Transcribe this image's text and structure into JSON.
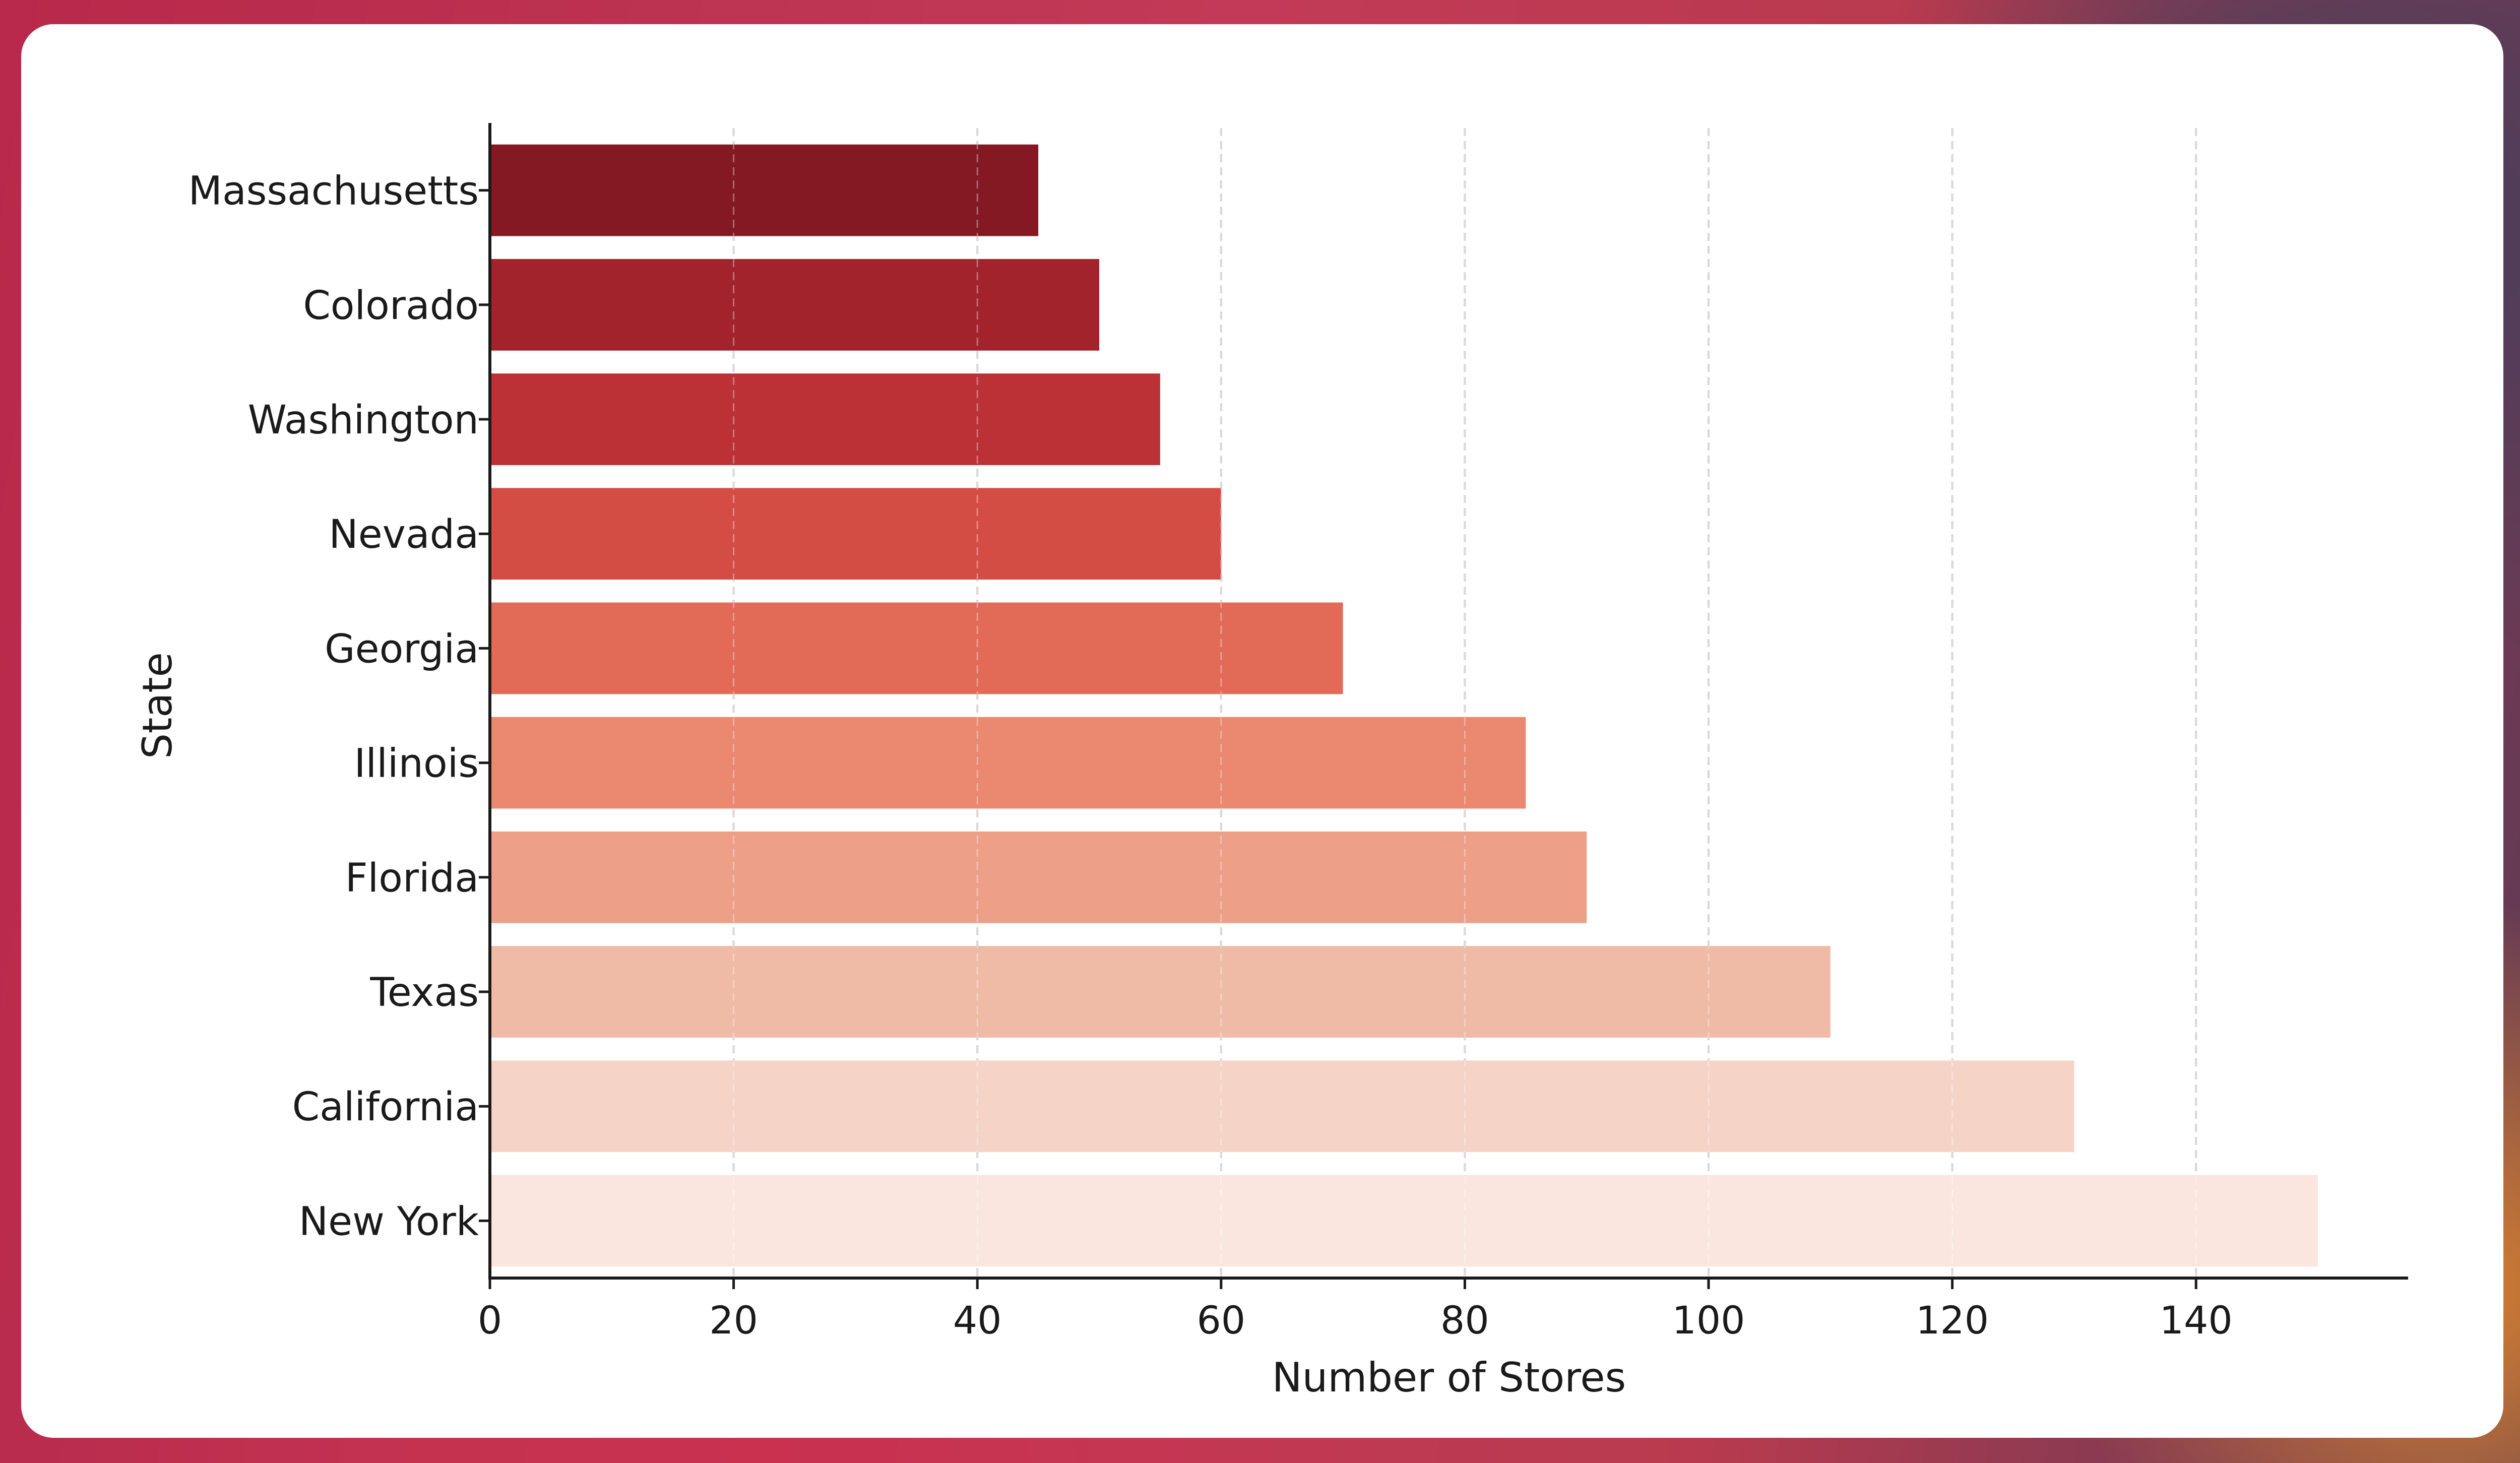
{
  "chart_data": {
    "type": "bar",
    "orientation": "horizontal",
    "categories": [
      "Massachusetts",
      "Colorado",
      "Washington",
      "Nevada",
      "Georgia",
      "Illinois",
      "Florida",
      "Texas",
      "California",
      "New York"
    ],
    "values": [
      45,
      50,
      55,
      60,
      70,
      85,
      90,
      110,
      130,
      150
    ],
    "colors": [
      "#841924",
      "#a3232c",
      "#bb3135",
      "#d44d44",
      "#e26b58",
      "#ea8870",
      "#ee9f87",
      "#efbba6",
      "#f6d3c7",
      "#fae6df"
    ],
    "xlabel": "Number of Stores",
    "ylabel": "State",
    "xlim": [
      0,
      158
    ],
    "xticks": [
      0,
      20,
      40,
      60,
      80,
      100,
      120,
      140
    ],
    "grid": "x-dashed",
    "legend": "none"
  }
}
